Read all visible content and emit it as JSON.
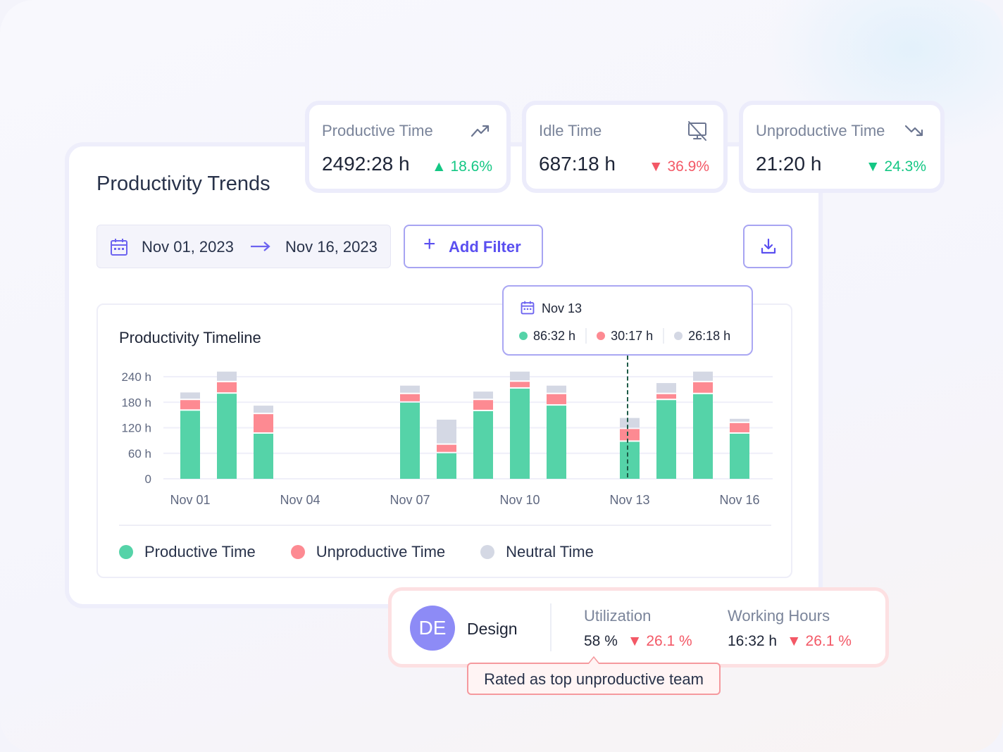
{
  "title": "Productivity Trends",
  "stats": [
    {
      "label": "Productive Time",
      "value": "2492:28 h",
      "change": "18.6%",
      "direction": "up",
      "icon": "trending-up-icon"
    },
    {
      "label": "Idle Time",
      "value": "687:18 h",
      "change": "36.9%",
      "direction": "down",
      "icon": "monitor-off-icon"
    },
    {
      "label": "Unproductive Time",
      "value": "21:20 h",
      "change": "24.3%",
      "direction": "down",
      "icon": "trending-down-icon"
    }
  ],
  "date_range": {
    "start": "Nov 01, 2023",
    "end": "Nov 16, 2023"
  },
  "add_filter_label": "Add Filter",
  "tooltip": {
    "date": "Nov 13",
    "productive": "86:32 h",
    "unproductive": "30:17 h",
    "neutral": "26:18 h"
  },
  "team": {
    "initials": "DE",
    "name": "Design",
    "utilization_label": "Utilization",
    "utilization": "58 %",
    "utilization_change": "26.1 %",
    "hours_label": "Working Hours",
    "hours": "16:32 h",
    "hours_change": "26.1 %",
    "badge": "Rated as top unproductive team"
  },
  "colors": {
    "productive": "#55d3a8",
    "unproductive": "#fd8a92",
    "neutral": "#d4d8e4",
    "accent": "#5a4ff0"
  },
  "chart_data": {
    "type": "bar",
    "stacked": true,
    "title": "Productivity Timeline",
    "categories": [
      "Nov 01",
      "Nov 02",
      "Nov 03",
      "Nov 04",
      "Nov 05",
      "Nov 06",
      "Nov 07",
      "Nov 08",
      "Nov 09",
      "Nov 10",
      "Nov 11",
      "Nov 12",
      "Nov 13",
      "Nov 14",
      "Nov 15",
      "Nov 16"
    ],
    "x_tick_labels": [
      "Nov 01",
      "Nov 04",
      "Nov 07",
      "Nov 10",
      "Nov 13",
      "Nov 16"
    ],
    "y_tick_labels": [
      "0",
      "60 h",
      "120 h",
      "180 h",
      "240 h"
    ],
    "ylim": [
      0,
      240
    ],
    "ylabel": "hours",
    "series": [
      {
        "name": "Productive Time",
        "values": [
          160,
          200,
          106,
          0,
          0,
          0,
          179,
          60,
          159,
          212,
          172,
          0,
          87,
          185,
          199,
          106
        ]
      },
      {
        "name": "Unproductive Time",
        "values": [
          25,
          27,
          46,
          0,
          0,
          0,
          20,
          20,
          26,
          16,
          27,
          0,
          30,
          14,
          28,
          25
        ]
      },
      {
        "name": "Neutral Time",
        "values": [
          18,
          25,
          20,
          0,
          0,
          0,
          20,
          59,
          20,
          24,
          20,
          0,
          26,
          26,
          25,
          10
        ]
      }
    ],
    "highlight": "Nov 13",
    "legend": "bottom-left"
  }
}
